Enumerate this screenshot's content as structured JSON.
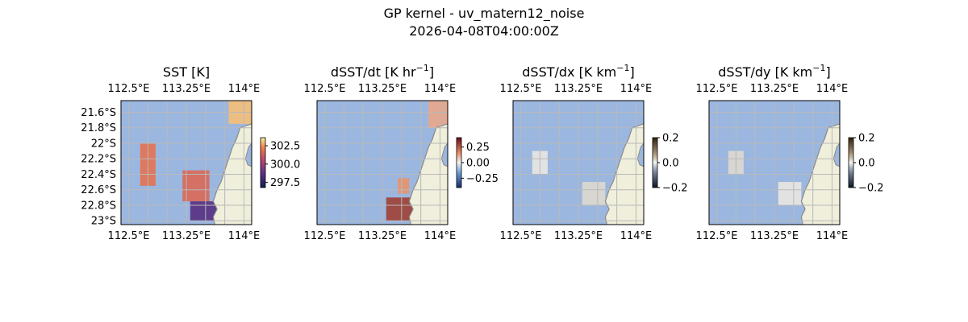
{
  "figure": {
    "title_line1": "GP kernel - uv_matern12_noise",
    "title_line2": "2026-04-08T04:00:00Z"
  },
  "colors": {
    "ocean": "#9bb7e0",
    "land": "#efefdb",
    "coast": "#8a8a8a",
    "grid": "#b9b9b9"
  },
  "map_extent": {
    "lon": [
      112.4,
      114.1
    ],
    "lat": [
      -23.05,
      -21.45
    ]
  },
  "lon_ticks": [
    "112.5°E",
    "113.25°E",
    "114°E"
  ],
  "lat_ticks": [
    "21.6°S",
    "21.8°S",
    "22°S",
    "22.2°S",
    "22.4°S",
    "22.6°S",
    "22.8°S",
    "23°S"
  ],
  "chart_data": [
    {
      "type": "heatmap",
      "title": "SST [K]",
      "colorbar": {
        "ticks": [
          "302.5",
          "300.0",
          "297.5"
        ],
        "values": [
          302.5,
          300.0,
          297.5
        ],
        "range": [
          296.8,
          303.6
        ],
        "colormap": "thermal"
      },
      "patches": [
        {
          "lon": [
            113.8,
            114.1
          ],
          "lat": [
            -21.75,
            -21.45
          ],
          "value": 303.0
        },
        {
          "lon": [
            112.65,
            112.85
          ],
          "lat": [
            -22.55,
            -22.0
          ],
          "value": 301.8
        },
        {
          "lon": [
            113.2,
            113.55
          ],
          "lat": [
            -22.75,
            -22.35
          ],
          "value": 301.5
        },
        {
          "lon": [
            113.3,
            113.75
          ],
          "lat": [
            -23.0,
            -22.75
          ],
          "value": 298.5
        }
      ]
    },
    {
      "type": "heatmap",
      "title": "dSST/dt [K hr",
      "title_exp": "−1",
      "title_end": "]",
      "colorbar": {
        "ticks": [
          "0.25",
          "0.00",
          "−0.25"
        ],
        "values": [
          0.25,
          0.0,
          -0.25
        ],
        "range": [
          -0.4,
          0.4
        ],
        "colormap": "diverging-red-blue"
      },
      "patches": [
        {
          "lon": [
            113.85,
            114.1
          ],
          "lat": [
            -21.8,
            -21.45
          ],
          "value": 0.12
        },
        {
          "lon": [
            113.3,
            113.65
          ],
          "lat": [
            -23.0,
            -22.7
          ],
          "value": 0.3
        },
        {
          "lon": [
            113.45,
            113.6
          ],
          "lat": [
            -22.65,
            -22.45
          ],
          "value": 0.15
        }
      ]
    },
    {
      "type": "heatmap",
      "title": "dSST/dx [K km",
      "title_exp": "−1",
      "title_end": "]",
      "colorbar": {
        "ticks": [
          "0.2",
          "0.0",
          "−0.2"
        ],
        "values": [
          0.2,
          0.0,
          -0.2
        ],
        "range": [
          -0.2,
          0.2
        ],
        "colormap": "diverging-dark"
      },
      "patches": [
        {
          "lon": [
            113.3,
            113.6
          ],
          "lat": [
            -22.8,
            -22.5
          ],
          "value": 0.02
        },
        {
          "lon": [
            112.65,
            112.85
          ],
          "lat": [
            -22.4,
            -22.1
          ],
          "value": 0.01
        }
      ]
    },
    {
      "type": "heatmap",
      "title": "dSST/dy [K km",
      "title_exp": "−1",
      "title_end": "]",
      "colorbar": {
        "ticks": [
          "0.2",
          "0.0",
          "−0.2"
        ],
        "values": [
          0.2,
          0.0,
          -0.2
        ],
        "range": [
          -0.2,
          0.2
        ],
        "colormap": "diverging-dark"
      },
      "patches": [
        {
          "lon": [
            113.3,
            113.6
          ],
          "lat": [
            -22.8,
            -22.5
          ],
          "value": 0.01
        },
        {
          "lon": [
            112.65,
            112.85
          ],
          "lat": [
            -22.4,
            -22.1
          ],
          "value": 0.02
        }
      ]
    }
  ]
}
